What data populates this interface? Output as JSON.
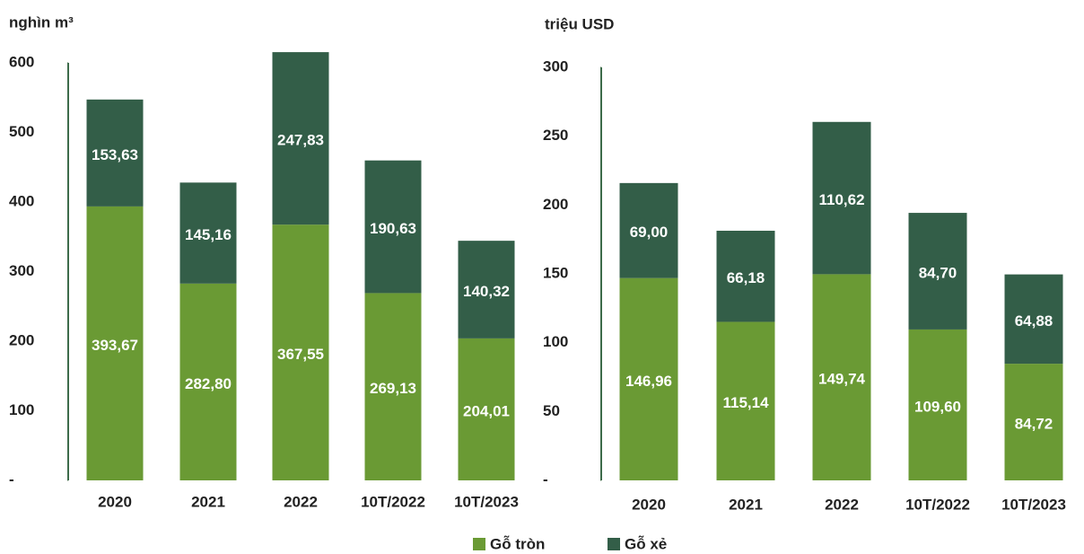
{
  "chart_data": [
    {
      "type": "stacked-bar",
      "ylabel": "nghìn m³",
      "categories": [
        "2020",
        "2021",
        "2022",
        "10T/2022",
        "10T/2023"
      ],
      "series": [
        {
          "name": "Gỗ tròn",
          "color": "#6a9a34",
          "values": [
            393.67,
            282.8,
            367.55,
            269.13,
            204.01
          ],
          "value_labels": [
            "393,67",
            "282,80",
            "367,55",
            "269,13",
            "204,01"
          ]
        },
        {
          "name": "Gỗ xẻ",
          "color": "#335e48",
          "values": [
            153.63,
            145.16,
            247.83,
            190.63,
            140.32
          ],
          "value_labels": [
            "153,63",
            "145,16",
            "247,83",
            "190,63",
            "140,32"
          ]
        }
      ],
      "ylim": [
        0,
        600
      ],
      "yticks": [
        {
          "value": 0,
          "label": "-"
        },
        100,
        200,
        300,
        400,
        500,
        600
      ]
    },
    {
      "type": "stacked-bar",
      "ylabel": "triệu USD",
      "categories": [
        "2020",
        "2021",
        "2022",
        "10T/2022",
        "10T/2023"
      ],
      "series": [
        {
          "name": "Gỗ tròn",
          "color": "#6a9a34",
          "values": [
            146.96,
            115.14,
            149.74,
            109.6,
            84.72
          ],
          "value_labels": [
            "146,96",
            "115,14",
            "149,74",
            "109,60",
            "84,72"
          ]
        },
        {
          "name": "Gỗ xẻ",
          "color": "#335e48",
          "values": [
            69.0,
            66.18,
            110.62,
            84.7,
            64.88
          ],
          "value_labels": [
            "69,00",
            "66,18",
            "110,62",
            "84,70",
            "64,88"
          ]
        }
      ],
      "ylim": [
        0,
        300
      ],
      "yticks": [
        {
          "value": 0,
          "label": "-"
        },
        50,
        100,
        150,
        200,
        250,
        300
      ]
    }
  ]
}
